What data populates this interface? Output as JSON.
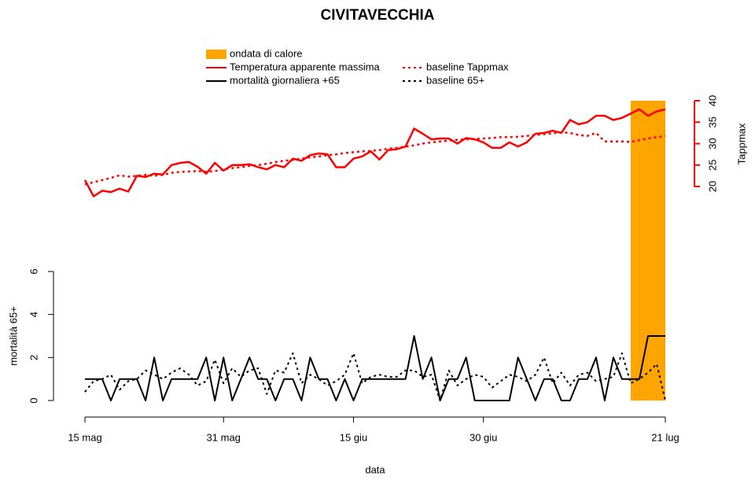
{
  "chart_data": {
    "type": "line",
    "title": "CIVITAVECCHIA",
    "x_label": "data",
    "y_label": "mortalità 65+",
    "y2_label": "Tappmax",
    "x": [
      0,
      1,
      2,
      3,
      4,
      5,
      6,
      7,
      8,
      9,
      10,
      11,
      12,
      13,
      14,
      15,
      16,
      17,
      18,
      19,
      20,
      21,
      22,
      23,
      24,
      25,
      26,
      27,
      28,
      29,
      30,
      31,
      32,
      33,
      34,
      35,
      36,
      37,
      38,
      39,
      40,
      41,
      42,
      43,
      44,
      45,
      46,
      47,
      48,
      49,
      50,
      51,
      52,
      53,
      54,
      55,
      56,
      57,
      58,
      59,
      60,
      61,
      62,
      63,
      64,
      65,
      66,
      67
    ],
    "xlim": [
      0,
      67
    ],
    "xticks": [
      {
        "value": 0,
        "label": "15 mag"
      },
      {
        "value": 16,
        "label": "31 mag"
      },
      {
        "value": 31,
        "label": "15 giu"
      },
      {
        "value": 46,
        "label": "30 giu"
      },
      {
        "value": 67,
        "label": "21 lug"
      }
    ],
    "ylim": [
      0,
      6
    ],
    "yticks": [
      0,
      2,
      4,
      6
    ],
    "y2lim": [
      20,
      40
    ],
    "y2ticks": [
      20,
      25,
      30,
      35,
      40
    ],
    "y2color": "#FF0000",
    "heatwave": {
      "name": "ondata di calore",
      "color": "#FFA500",
      "start": 63,
      "end": 67
    },
    "series": [
      {
        "name": "Temperatura apparente massima",
        "color": "#FF0000",
        "dashed": false,
        "axis": "y2",
        "values": [
          21.5,
          17.7,
          19.0,
          18.7,
          19.5,
          18.8,
          22.5,
          22.2,
          23,
          22.8,
          25,
          25.5,
          25.7,
          24.6,
          23,
          25.5,
          23.7,
          25,
          25,
          25.2,
          24.5,
          24,
          25,
          24.5,
          26.5,
          26,
          27.3,
          27.7,
          27.5,
          24.5,
          24.5,
          26.5,
          27,
          28.2,
          26.3,
          28.5,
          28.7,
          29.3,
          33.5,
          32.3,
          31,
          31.2,
          31.2,
          30,
          31.3,
          31,
          30.3,
          29,
          29,
          30.3,
          29.3,
          30.3,
          32.3,
          32.5,
          33,
          32.5,
          35.5,
          34.5,
          35,
          36.5,
          36.5,
          35.5,
          36,
          37,
          38,
          36.5,
          37.5,
          38
        ]
      },
      {
        "name": "baseline Tappmax",
        "color": "#FF0000",
        "dashed": true,
        "axis": "y2",
        "values": [
          20.5,
          21,
          21.5,
          22,
          22.6,
          22.3,
          22.5,
          22.7,
          22.5,
          22.7,
          23.2,
          23.4,
          23.5,
          23.6,
          23.4,
          23.6,
          24,
          24.3,
          24.5,
          24.8,
          25,
          25.3,
          25.7,
          26,
          26.2,
          26.5,
          26.8,
          27,
          27.3,
          27.5,
          27.8,
          28,
          28.2,
          28.3,
          28.5,
          28.8,
          29,
          29.3,
          29.6,
          30,
          30.3,
          30.5,
          30.7,
          30.9,
          31,
          31.1,
          31.2,
          31.3,
          31.5,
          31.5,
          31.6,
          31.8,
          32,
          32.2,
          32.4,
          32.6,
          32.5,
          32,
          31.8,
          32.5,
          30.5,
          30.5,
          30.5,
          30.4,
          30.8,
          31.2,
          31.5,
          31.8
        ]
      },
      {
        "name": "mortalità giornaliera +65",
        "color": "#000000",
        "dashed": false,
        "axis": "y",
        "values": [
          1,
          1,
          1,
          0,
          1,
          1,
          1,
          0,
          2,
          0,
          1,
          1,
          1,
          1,
          2,
          0,
          2,
          0,
          1,
          2,
          1,
          1,
          0,
          1,
          1,
          0,
          2,
          1,
          1,
          0,
          1,
          0,
          1,
          1,
          1,
          1,
          1,
          1,
          3,
          1,
          2,
          0,
          1,
          1,
          2,
          0,
          0,
          0,
          0,
          0,
          2,
          1,
          0,
          1,
          1,
          0,
          0,
          1,
          1,
          2,
          0,
          2,
          1,
          1,
          1,
          3,
          3,
          3
        ]
      },
      {
        "name": "baseline 65+",
        "color": "#000000",
        "dashed": true,
        "axis": "y",
        "values": [
          0.4,
          0.9,
          1,
          1.2,
          0.5,
          0.9,
          1,
          1.4,
          1.2,
          1,
          1.3,
          1.5,
          1.2,
          0.7,
          0.9,
          1.9,
          0.8,
          1.5,
          1.1,
          1.4,
          1.5,
          0.3,
          1.4,
          1.3,
          2.2,
          0.8,
          1.2,
          1,
          0.7,
          0.9,
          1.2,
          2.2,
          0.8,
          1.1,
          1.2,
          1.1,
          1.1,
          1.4,
          1.4,
          1.1,
          1.2,
          0,
          1.4,
          0.7,
          1,
          1.2,
          1.1,
          0.6,
          0.9,
          1.2,
          1.1,
          0.9,
          1.2,
          2,
          0.8,
          1.3,
          0.7,
          1.2,
          1.3,
          0.9,
          1,
          1.1,
          2.2,
          0.8,
          1,
          1.3,
          1.7,
          0
        ]
      }
    ]
  }
}
